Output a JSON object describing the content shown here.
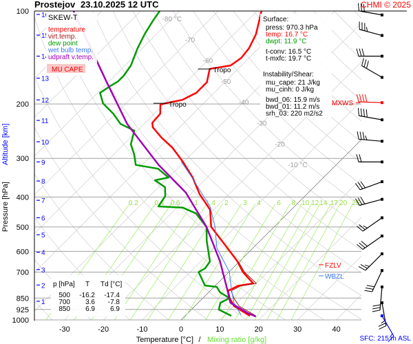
{
  "header": {
    "station": "Prostejov",
    "datetime": "23.10.2025 12 UTC",
    "credit": "CHMI © 2025"
  },
  "legend": {
    "title": "SKEW-T",
    "items": [
      {
        "label": "temperature",
        "color": "#ff0000"
      },
      {
        "label": "virt.temp.",
        "color": "#a01818"
      },
      {
        "label": "dew point",
        "color": "#009a00"
      },
      {
        "label": "wet bulb temp.",
        "color": "#3c78ff"
      },
      {
        "label": "udpraft v.temp.",
        "color": "#a000b4"
      }
    ],
    "cape_label": "MU CAPE"
  },
  "surface": {
    "title": "Surface:",
    "press": "press: 970.3 hPa",
    "temp": "temp: 16.7 °C",
    "dwpt": "dwpt: 11.9 °C",
    "tconv": "t-conv: 16.5 °C",
    "tmxfc": "t-mxfc: 19.7 °C"
  },
  "instability": {
    "title": "Instability/Shear:",
    "mu_cape": "mu_cape: 21 J/kg",
    "mu_cinh": "mu_cinh: 0 J/kg",
    "bwd_06": "bwd_06: 15.9 m/s",
    "bwd_01": "bwd_01: 11.2 m/s",
    "srh_03": "srh_03: 220 m2/s2"
  },
  "table": {
    "headers": [
      "p [hPa]",
      "T",
      "Td [°C]"
    ],
    "rows": [
      [
        "500",
        "-16.2",
        "-17.4"
      ],
      [
        "700",
        "3.6",
        "-7.8"
      ],
      [
        "850",
        "6.9",
        "6.9"
      ]
    ]
  },
  "markers": {
    "fzlv": "FZLV",
    "wbzl": "WBZL",
    "mxws": "MXWS",
    "tropo": "Tropo",
    "sfc": "SFC: 215 m ASL"
  },
  "chart_data": {
    "type": "line",
    "title": "Prostejov 23.10.2025 12 UTC",
    "xlabel": "Temperature [°C]",
    "xlabel_sep": "/",
    "xlabel2": "Mixing ratio [g/kg]",
    "ylabel": "Pressure [hPa]",
    "ylabel2": "Altitude [km]",
    "ylim": [
      1000,
      100
    ],
    "pressure_ticks": [
      "100",
      "200",
      "300",
      "400",
      "500",
      "600",
      "700",
      "850",
      "925",
      "1000"
    ],
    "temp_ticks": [
      "-30",
      "-20",
      "-10",
      "0",
      "10",
      "20",
      "30",
      "40"
    ],
    "altitude_ticks": [
      {
        "km": "16",
        "p": 102.6
      },
      {
        "km": "15",
        "p": 119.7
      },
      {
        "km": "14",
        "p": 140
      },
      {
        "km": "13",
        "p": 165
      },
      {
        "km": "12",
        "p": 194
      },
      {
        "km": "11",
        "p": 226
      },
      {
        "km": "10",
        "p": 265
      },
      {
        "km": "9",
        "p": 308
      },
      {
        "km": "8",
        "p": 355
      },
      {
        "km": "7",
        "p": 410
      },
      {
        "km": "6",
        "p": 467
      },
      {
        "km": "5",
        "p": 530
      },
      {
        "km": "4",
        "p": 604
      },
      {
        "km": "3",
        "p": 687
      },
      {
        "km": "2",
        "p": 771
      },
      {
        "km": "1",
        "p": 870
      }
    ],
    "isotherm_labels": [
      {
        "T": -80,
        "label": "-80 °C"
      },
      {
        "T": -70,
        "label": "-70"
      },
      {
        "T": -60,
        "label": "-60"
      },
      {
        "T": -50,
        "label": "-50"
      },
      {
        "T": -40,
        "label": "-40"
      },
      {
        "T": -30,
        "label": "-30"
      },
      {
        "T": -20,
        "label": "-20"
      },
      {
        "T": -10,
        "label": "-10 °C"
      }
    ],
    "mixing_ratio_labels": [
      "0.2",
      "0.4",
      "0.6",
      "1",
      "1.4",
      "2",
      "3",
      "4",
      "6",
      "8",
      "10",
      "12",
      "14",
      "17",
      "20",
      "25"
    ],
    "series": [
      {
        "name": "temperature",
        "color": "#ff0000",
        "points": [
          [
            100,
            -58.9
          ],
          [
            107,
            -57.1
          ],
          [
            119,
            -54.3
          ],
          [
            132,
            -52.5
          ],
          [
            142,
            -52
          ],
          [
            150,
            -52.8
          ],
          [
            154,
            -57.3
          ],
          [
            170,
            -54.6
          ],
          [
            184,
            -54.6
          ],
          [
            194,
            -56.4
          ],
          [
            199,
            -59.9
          ],
          [
            201,
            -60.8
          ],
          [
            215,
            -58.5
          ],
          [
            230,
            -58.2
          ],
          [
            238,
            -56.9
          ],
          [
            257,
            -52
          ],
          [
            277,
            -46.6
          ],
          [
            307,
            -40.4
          ],
          [
            346,
            -33.7
          ],
          [
            391,
            -27.7
          ],
          [
            440,
            -20.9
          ],
          [
            500,
            -16.2
          ],
          [
            584,
            -6.7
          ],
          [
            647,
            -0.5
          ],
          [
            700,
            3.6
          ],
          [
            762,
            9.2
          ],
          [
            776,
            5.9
          ],
          [
            805,
            4.6
          ],
          [
            850,
            6.9
          ],
          [
            902,
            10.1
          ],
          [
            970,
            16.7
          ]
        ]
      },
      {
        "name": "virt.temp.",
        "color": "#a01818",
        "points": [
          [
            647,
            -0.3
          ],
          [
            700,
            4.0
          ],
          [
            762,
            10.0
          ],
          [
            776,
            6.6
          ],
          [
            805,
            5.4
          ],
          [
            850,
            8.0
          ],
          [
            902,
            11.4
          ],
          [
            970,
            18.2
          ]
        ]
      },
      {
        "name": "wet bulb temp.",
        "color": "#3c78ff",
        "points": [
          [
            307,
            -40.8
          ],
          [
            346,
            -33.9
          ],
          [
            429,
            -21.8
          ],
          [
            500,
            -15.2
          ],
          [
            584,
            -9.4
          ],
          [
            698,
            0
          ],
          [
            794,
            5
          ],
          [
            880,
            9.2
          ],
          [
            964,
            14.2
          ]
        ]
      },
      {
        "name": "dew point",
        "color": "#009a00",
        "points": [
          [
            100,
            -85.1
          ],
          [
            107,
            -84.4
          ],
          [
            119,
            -83
          ],
          [
            132,
            -81.2
          ],
          [
            150,
            -78.5
          ],
          [
            162,
            -77.7
          ],
          [
            169,
            -77.7
          ],
          [
            175,
            -78.5
          ],
          [
            184,
            -79.4
          ],
          [
            199,
            -75.9
          ],
          [
            215,
            -70.6
          ],
          [
            232,
            -66.1
          ],
          [
            244,
            -60.8
          ],
          [
            270,
            -58.2
          ],
          [
            292,
            -54.6
          ],
          [
            315,
            -51.6
          ],
          [
            324,
            -44.9
          ],
          [
            346,
            -39.9
          ],
          [
            353,
            -42.7
          ],
          [
            372,
            -38.3
          ],
          [
            397,
            -36
          ],
          [
            429,
            -35.1
          ],
          [
            433,
            -28.5
          ],
          [
            452,
            -23.6
          ],
          [
            500,
            -17.4
          ],
          [
            554,
            -13.8
          ],
          [
            647,
            -7.6
          ],
          [
            681,
            -7.1
          ],
          [
            700,
            -7.8
          ],
          [
            774,
            -2.7
          ],
          [
            782,
            0.7
          ],
          [
            815,
            3
          ],
          [
            850,
            6.9
          ],
          [
            880,
            5.7
          ],
          [
            926,
            7.1
          ],
          [
            970,
            11.9
          ]
        ]
      },
      {
        "name": "udpraft v.temp.",
        "color": "#a000b4",
        "points": [
          [
            100,
            -107.3
          ],
          [
            169,
            -80.7
          ],
          [
            232,
            -64.4
          ],
          [
            315,
            -45.7
          ],
          [
            387,
            -31.6
          ],
          [
            500,
            -17.4
          ],
          [
            647,
            -5
          ],
          [
            794,
            3.9
          ],
          [
            880,
            8.3
          ],
          [
            950,
            15.4
          ],
          [
            975,
            18.4
          ]
        ]
      }
    ],
    "tropopause": [
      {
        "p": 154,
        "T": -57.3
      },
      {
        "p": 199,
        "T": -59.9
      }
    ],
    "fzlv_p": 663,
    "wbzl_p": 720,
    "mxws_p": 198,
    "cape_region": [
      790,
      880
    ],
    "wind_barbs": [
      {
        "p": 103,
        "dir": 280,
        "kt": 30
      },
      {
        "p": 120,
        "dir": 285,
        "kt": 35
      },
      {
        "p": 140,
        "dir": 270,
        "kt": 30
      },
      {
        "p": 164,
        "dir": 300,
        "kt": 30
      },
      {
        "p": 198,
        "dir": 272,
        "kt": 40,
        "max": true
      },
      {
        "p": 225,
        "dir": 280,
        "kt": 40
      },
      {
        "p": 264,
        "dir": 275,
        "kt": 35
      },
      {
        "p": 308,
        "dir": 270,
        "kt": 20
      },
      {
        "p": 357,
        "dir": 250,
        "kt": 30
      },
      {
        "p": 407,
        "dir": 255,
        "kt": 30
      },
      {
        "p": 467,
        "dir": 235,
        "kt": 25
      },
      {
        "p": 535,
        "dir": 235,
        "kt": 30
      },
      {
        "p": 611,
        "dir": 225,
        "kt": 25
      },
      {
        "p": 692,
        "dir": 205,
        "kt": 30
      },
      {
        "p": 782,
        "dir": 185,
        "kt": 30
      },
      {
        "p": 880,
        "dir": 170,
        "kt": 25
      },
      {
        "p": 970,
        "dir": 150,
        "kt": 15,
        "surface": true
      }
    ]
  }
}
